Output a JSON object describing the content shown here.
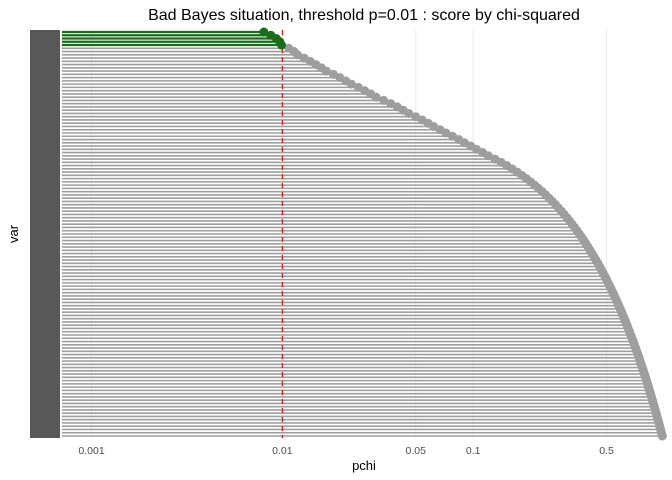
{
  "chart_data": {
    "type": "scatter",
    "title": "Bad Bayes situation, threshold p=0.01 : score by chi-squared",
    "xlabel": "pchi",
    "ylabel": "var",
    "x_scale": "log",
    "xlim": [
      0.0007,
      1.0
    ],
    "x_ticks": [
      {
        "value": 0.001,
        "label": "0.001"
      },
      {
        "value": 0.01,
        "label": "0.01"
      },
      {
        "value": 0.05,
        "label": "0.05"
      },
      {
        "value": 0.1,
        "label": "0.1"
      },
      {
        "value": 0.5,
        "label": "0.5"
      }
    ],
    "threshold": {
      "value": 0.01,
      "color": "#e41a1c",
      "style": "dashed"
    },
    "grid": true,
    "legend": "none",
    "colors": {
      "selected": "#1a6e1a",
      "other": "#9e9e9e"
    },
    "marker_style": "point with horizontal segment from left axis",
    "series": [
      {
        "selected": true,
        "x": [
          0.008,
          0.0087,
          0.0093,
          0.0097,
          0.0099
        ]
      },
      {
        "selected": false,
        "x": [
          0.0108,
          0.0115,
          0.012,
          0.013,
          0.014,
          0.015,
          0.016,
          0.017,
          0.0185,
          0.02,
          0.0215,
          0.023,
          0.025,
          0.027,
          0.029,
          0.031,
          0.034,
          0.037,
          0.04,
          0.043,
          0.046,
          0.05,
          0.054,
          0.058,
          0.062,
          0.067,
          0.072,
          0.078,
          0.084,
          0.09,
          0.097,
          0.104,
          0.112,
          0.12,
          0.13,
          0.14,
          0.15,
          0.16,
          0.17,
          0.18,
          0.19,
          0.2,
          0.21,
          0.22,
          0.23,
          0.24,
          0.25,
          0.26,
          0.27,
          0.28,
          0.29,
          0.3,
          0.31,
          0.32,
          0.33,
          0.34,
          0.35,
          0.36,
          0.37,
          0.38,
          0.39,
          0.4,
          0.41,
          0.42,
          0.43,
          0.44,
          0.45,
          0.46,
          0.47,
          0.48,
          0.49,
          0.5,
          0.51,
          0.52,
          0.53,
          0.54,
          0.55,
          0.56,
          0.57,
          0.58,
          0.59,
          0.6,
          0.61,
          0.62,
          0.63,
          0.64,
          0.65,
          0.66,
          0.67,
          0.68,
          0.69,
          0.7,
          0.71,
          0.72,
          0.73,
          0.74,
          0.75,
          0.76,
          0.77,
          0.78,
          0.79,
          0.8,
          0.81,
          0.82,
          0.83,
          0.84,
          0.85,
          0.86,
          0.87,
          0.88,
          0.89,
          0.9,
          0.91,
          0.92,
          0.93,
          0.94,
          0.95,
          0.96,
          0.97,
          0.98
        ]
      }
    ]
  }
}
